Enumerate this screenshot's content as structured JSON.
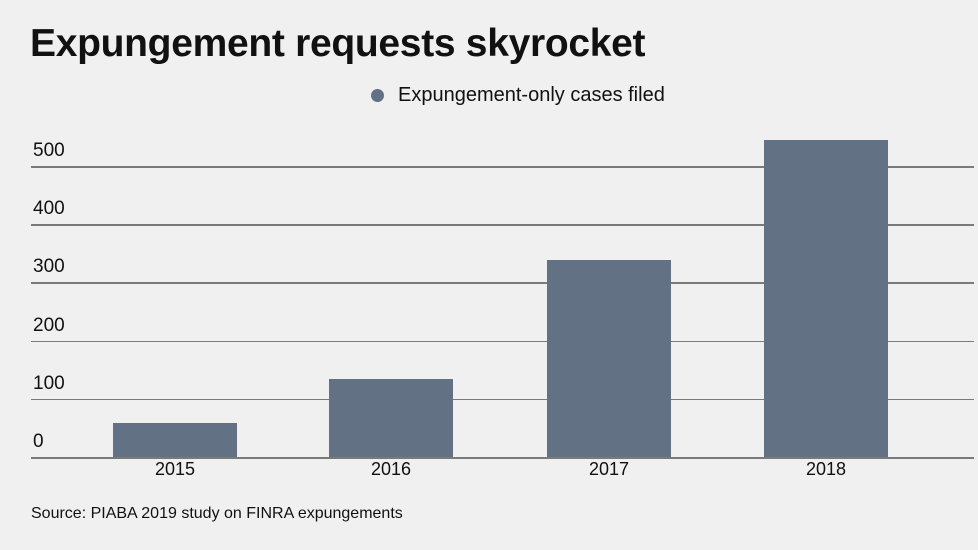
{
  "title": "Expungement requests skyrocket",
  "legend": {
    "label": "Expungement-only cases filed",
    "color": "#637184"
  },
  "source": "Source: PIABA 2019 study on FINRA expungements",
  "chart_data": {
    "type": "bar",
    "title": "Expungement requests skyrocket",
    "xlabel": "",
    "ylabel": "",
    "categories": [
      "2015",
      "2016",
      "2017",
      "2018"
    ],
    "series": [
      {
        "name": "Expungement-only cases filed",
        "values": [
          58,
          134,
          338,
          545
        ],
        "color": "#637184"
      }
    ],
    "yticks": [
      "0",
      "100",
      "200",
      "300",
      "400",
      "500"
    ],
    "ylim": [
      0,
      545
    ],
    "grid": true,
    "legend_position": "top-center"
  }
}
